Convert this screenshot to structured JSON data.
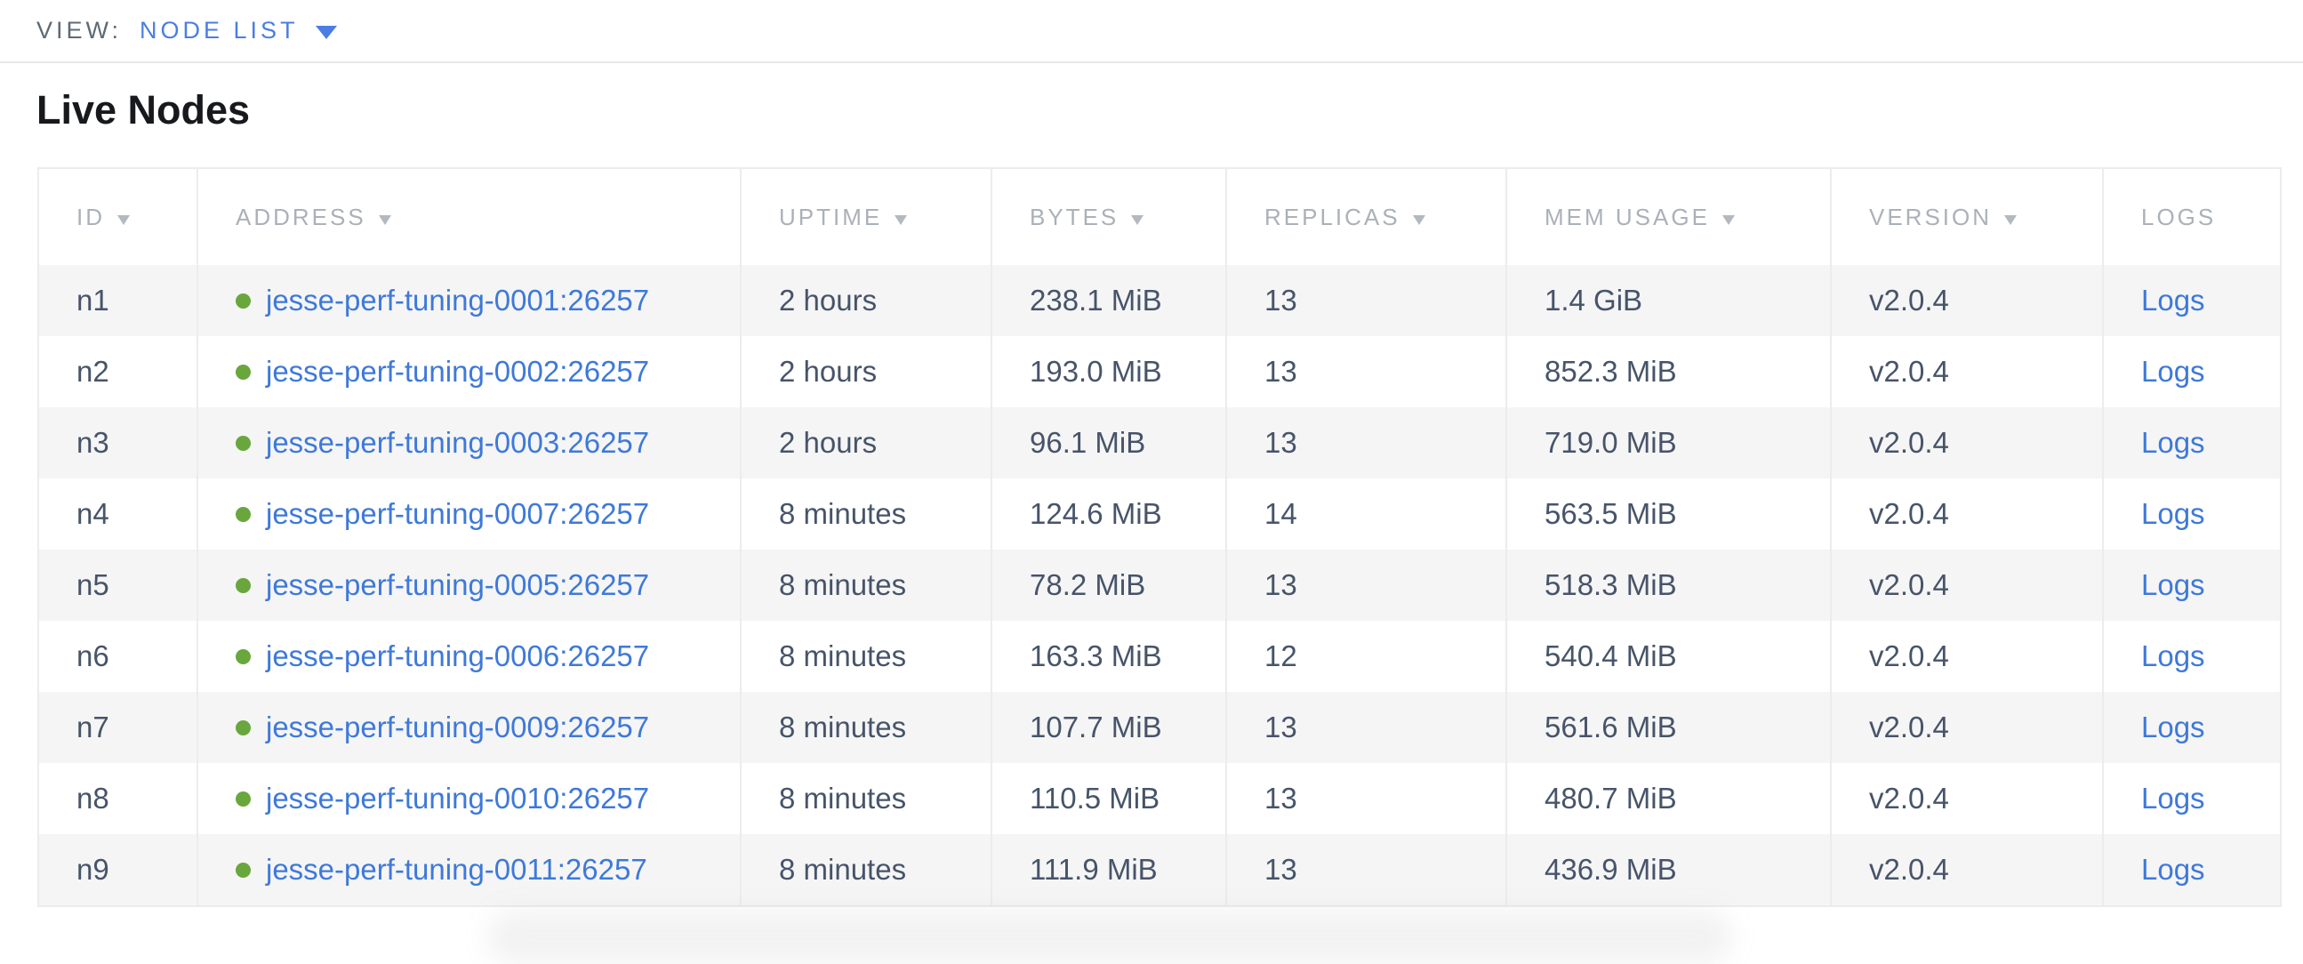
{
  "view_bar": {
    "label": "VIEW:",
    "selected_view": "NODE LIST"
  },
  "page_title": "Live Nodes",
  "table": {
    "columns": [
      {
        "label": "ID",
        "sortable": true
      },
      {
        "label": "ADDRESS",
        "sortable": true
      },
      {
        "label": "UPTIME",
        "sortable": true
      },
      {
        "label": "BYTES",
        "sortable": true
      },
      {
        "label": "REPLICAS",
        "sortable": true
      },
      {
        "label": "MEM USAGE",
        "sortable": true
      },
      {
        "label": "VERSION",
        "sortable": true
      },
      {
        "label": "LOGS",
        "sortable": false
      }
    ],
    "rows": [
      {
        "id": "n1",
        "status": "live",
        "address": "jesse-perf-tuning-0001:26257",
        "uptime": "2 hours",
        "bytes": "238.1 MiB",
        "replicas": "13",
        "mem_usage": "1.4 GiB",
        "version": "v2.0.4",
        "logs": "Logs"
      },
      {
        "id": "n2",
        "status": "live",
        "address": "jesse-perf-tuning-0002:26257",
        "uptime": "2 hours",
        "bytes": "193.0 MiB",
        "replicas": "13",
        "mem_usage": "852.3 MiB",
        "version": "v2.0.4",
        "logs": "Logs"
      },
      {
        "id": "n3",
        "status": "live",
        "address": "jesse-perf-tuning-0003:26257",
        "uptime": "2 hours",
        "bytes": "96.1 MiB",
        "replicas": "13",
        "mem_usage": "719.0 MiB",
        "version": "v2.0.4",
        "logs": "Logs"
      },
      {
        "id": "n4",
        "status": "live",
        "address": "jesse-perf-tuning-0007:26257",
        "uptime": "8 minutes",
        "bytes": "124.6 MiB",
        "replicas": "14",
        "mem_usage": "563.5 MiB",
        "version": "v2.0.4",
        "logs": "Logs"
      },
      {
        "id": "n5",
        "status": "live",
        "address": "jesse-perf-tuning-0005:26257",
        "uptime": "8 minutes",
        "bytes": "78.2 MiB",
        "replicas": "13",
        "mem_usage": "518.3 MiB",
        "version": "v2.0.4",
        "logs": "Logs"
      },
      {
        "id": "n6",
        "status": "live",
        "address": "jesse-perf-tuning-0006:26257",
        "uptime": "8 minutes",
        "bytes": "163.3 MiB",
        "replicas": "12",
        "mem_usage": "540.4 MiB",
        "version": "v2.0.4",
        "logs": "Logs"
      },
      {
        "id": "n7",
        "status": "live",
        "address": "jesse-perf-tuning-0009:26257",
        "uptime": "8 minutes",
        "bytes": "107.7 MiB",
        "replicas": "13",
        "mem_usage": "561.6 MiB",
        "version": "v2.0.4",
        "logs": "Logs"
      },
      {
        "id": "n8",
        "status": "live",
        "address": "jesse-perf-tuning-0010:26257",
        "uptime": "8 minutes",
        "bytes": "110.5 MiB",
        "replicas": "13",
        "mem_usage": "480.7 MiB",
        "version": "v2.0.4",
        "logs": "Logs"
      },
      {
        "id": "n9",
        "status": "live",
        "address": "jesse-perf-tuning-0011:26257",
        "uptime": "8 minutes",
        "bytes": "111.9 MiB",
        "replicas": "13",
        "mem_usage": "436.9 MiB",
        "version": "v2.0.4",
        "logs": "Logs"
      }
    ]
  },
  "colors": {
    "accent_blue": "#4a7ee2",
    "link_blue": "#3e79d9",
    "status_green": "#69a63c",
    "cell_text": "#475469",
    "header_text": "#abb1b8",
    "zebra_row": "#f5f5f6",
    "divider": "#ececec"
  }
}
